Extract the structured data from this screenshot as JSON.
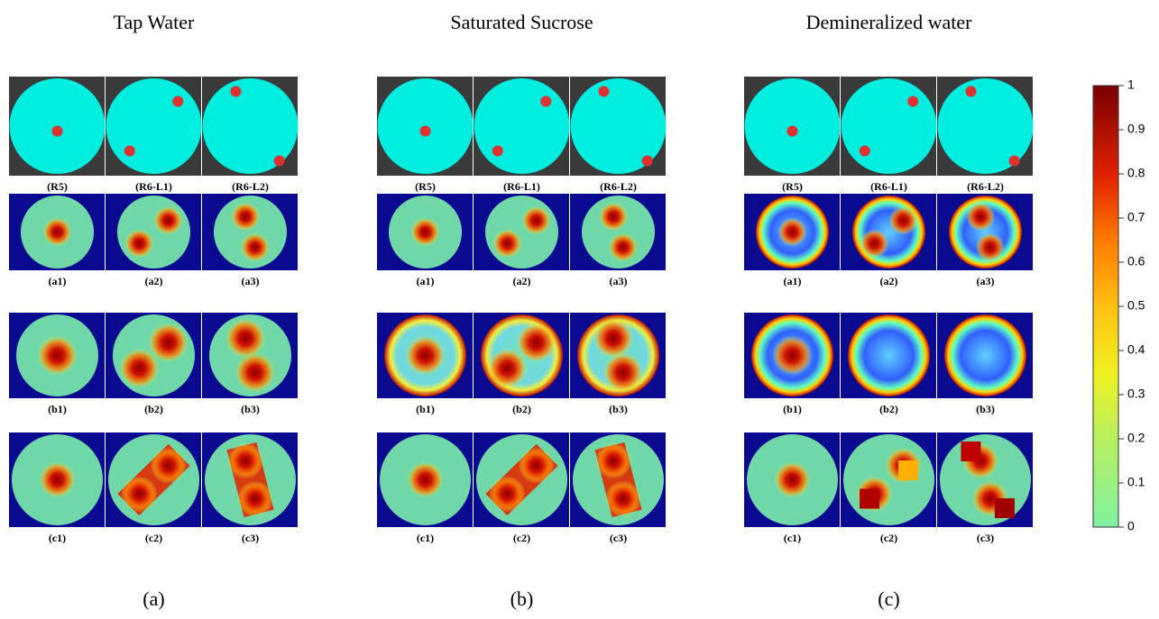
{
  "panels": [
    {
      "title": "Tap Water",
      "caption": "(a)",
      "rows": [
        [
          "(R5)",
          "(R6-L1)",
          "(R6-L2)"
        ],
        [
          "(a1)",
          "(a2)",
          "(a3)"
        ],
        [
          "(b1)",
          "(b2)",
          "(b3)"
        ],
        [
          "(c1)",
          "(c2)",
          "(c3)"
        ]
      ]
    },
    {
      "title": "Saturated Sucrose",
      "caption": "(b)",
      "rows": [
        [
          "(R5)",
          "(R6-L1)",
          "(R6-L2)"
        ],
        [
          "(a1)",
          "(a2)",
          "(a3)"
        ],
        [
          "(b1)",
          "(b2)",
          "(b3)"
        ],
        [
          "(c1)",
          "(c2)",
          "(c3)"
        ]
      ]
    },
    {
      "title": "Demineralized water",
      "caption": "(c)",
      "rows": [
        [
          "(R5)",
          "(R6-L1)",
          "(R6-L2)"
        ],
        [
          "(a1)",
          "(a2)",
          "(a3)"
        ],
        [
          "(b1)",
          "(b2)",
          "(b3)"
        ],
        [
          "(c1)",
          "(c2)",
          "(c3)"
        ]
      ]
    }
  ],
  "colorbar": {
    "ticks": [
      0,
      0.1,
      0.2,
      0.3,
      0.4,
      0.5,
      0.6,
      0.7,
      0.8,
      0.9,
      1
    ]
  }
}
